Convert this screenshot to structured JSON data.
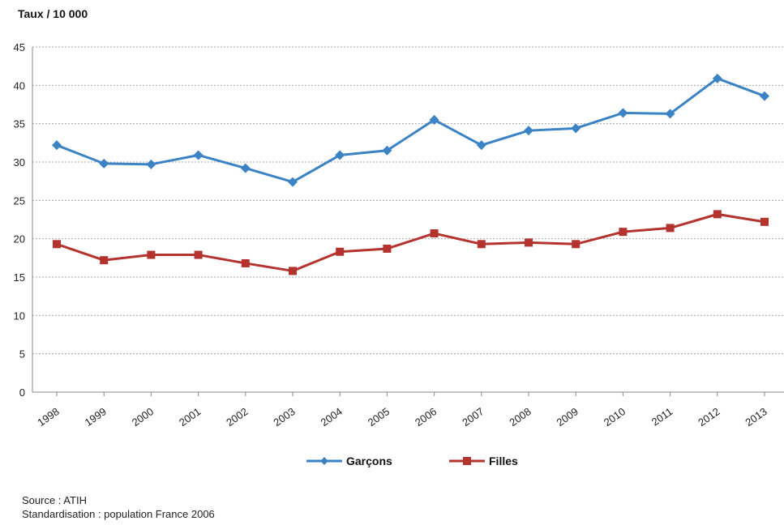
{
  "chart_data": {
    "type": "line",
    "ylabel": "Taux / 10 000",
    "xlabel": "",
    "ylim": [
      0,
      45
    ],
    "yticks": [
      0,
      5,
      10,
      15,
      20,
      25,
      30,
      35,
      40,
      45
    ],
    "categories": [
      "1998",
      "1999",
      "2000",
      "2001",
      "2002",
      "2003",
      "2004",
      "2005",
      "2006",
      "2007",
      "2008",
      "2009",
      "2010",
      "2011",
      "2012",
      "2013"
    ],
    "series": [
      {
        "name": "Garçons",
        "color": "#3b83c5",
        "marker": "diamond",
        "values": [
          32.2,
          29.8,
          29.7,
          30.9,
          29.2,
          27.4,
          30.9,
          31.5,
          35.5,
          32.2,
          34.1,
          34.4,
          36.4,
          36.3,
          40.9,
          38.6
        ]
      },
      {
        "name": "Filles",
        "color": "#b5332f",
        "marker": "square",
        "values": [
          19.3,
          17.2,
          17.9,
          17.9,
          16.8,
          15.8,
          18.3,
          18.7,
          20.7,
          19.3,
          19.5,
          19.3,
          20.9,
          21.4,
          23.2,
          22.2
        ]
      }
    ],
    "grid": true,
    "legend_position": "bottom"
  },
  "notes": {
    "source": "Source : ATIH",
    "standardisation": "Standardisation : population France 2006"
  }
}
